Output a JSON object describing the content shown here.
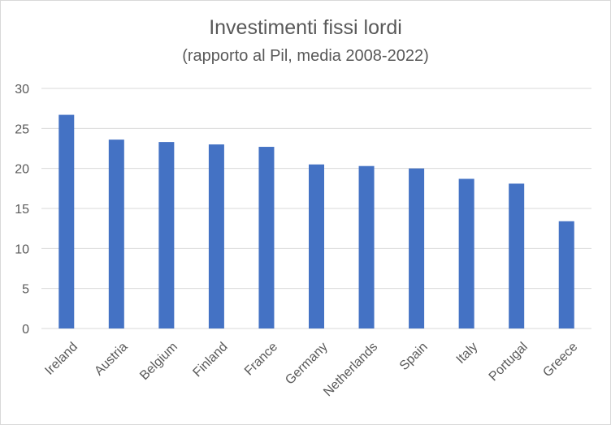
{
  "chart_data": {
    "type": "bar",
    "title": "Investimenti fissi lordi",
    "subtitle": "(rapporto al Pil, media 2008-2022)",
    "xlabel": "",
    "ylabel": "",
    "categories": [
      "Ireland",
      "Austria",
      "Belgium",
      "Finland",
      "France",
      "Germany",
      "Netherlands",
      "Spain",
      "Italy",
      "Portugal",
      "Greece"
    ],
    "values": [
      26.7,
      23.6,
      23.3,
      23.0,
      22.7,
      20.5,
      20.3,
      20.0,
      18.7,
      18.1,
      13.4
    ],
    "ylim": [
      0,
      30
    ],
    "yticks": [
      0,
      5,
      10,
      15,
      20,
      25,
      30
    ],
    "grid": true,
    "legend": "none",
    "bar_color": "#4472c4",
    "grid_color": "#d9d9d9",
    "text_color": "#595959"
  }
}
